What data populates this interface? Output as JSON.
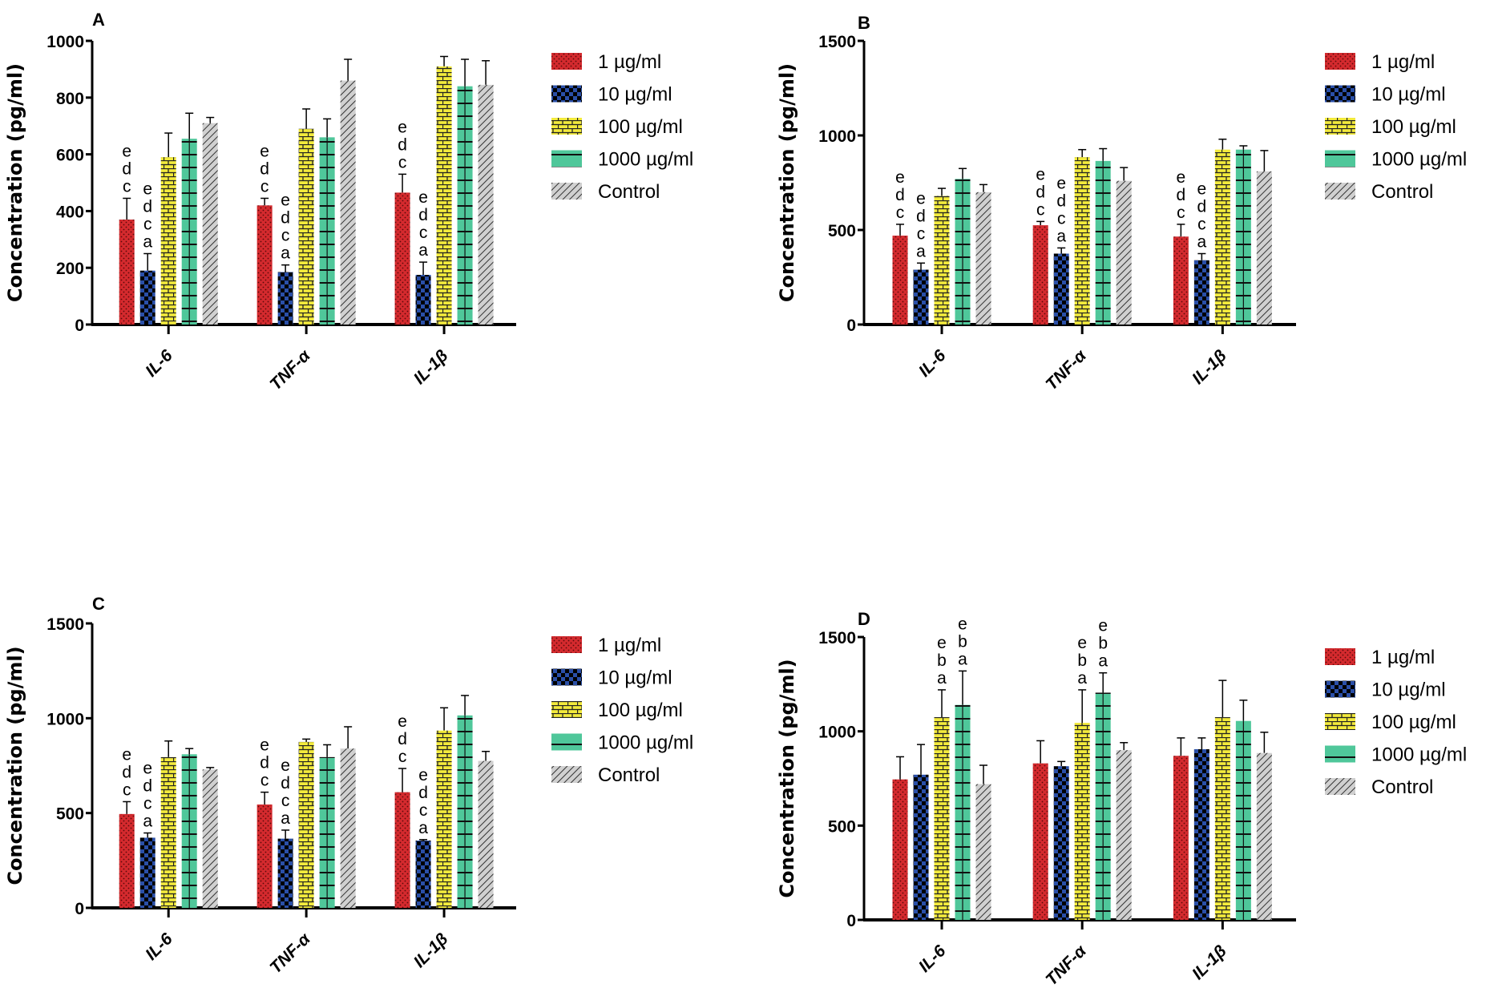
{
  "chart_data": [
    {
      "type": "bar",
      "panel_label": "A",
      "ylabel": "Concentration (pg/ml)",
      "ylim": [
        0,
        1000
      ],
      "yticks": [
        0,
        200,
        400,
        600,
        800,
        1000
      ],
      "categories": [
        "IL-6",
        "TNF-α",
        "IL-1β"
      ],
      "legend_position": "right",
      "series": [
        {
          "name": "1 µg/ml",
          "values": [
            370,
            420,
            465
          ],
          "errors": [
            75,
            25,
            65
          ],
          "letters": [
            [
              "e",
              "d",
              "c"
            ],
            [
              "e",
              "d",
              "c"
            ],
            [
              "e",
              "d",
              "c"
            ]
          ]
        },
        {
          "name": "10 µg/ml",
          "values": [
            190,
            185,
            175
          ],
          "errors": [
            60,
            25,
            45
          ],
          "letters": [
            [
              "e",
              "d",
              "c",
              "a"
            ],
            [
              "e",
              "d",
              "c",
              "a"
            ],
            [
              "e",
              "d",
              "c",
              "a"
            ]
          ]
        },
        {
          "name": "100 µg/ml",
          "values": [
            590,
            690,
            910
          ],
          "errors": [
            85,
            70,
            35
          ],
          "letters": [
            [],
            [],
            []
          ]
        },
        {
          "name": "1000 µg/ml",
          "values": [
            655,
            660,
            840
          ],
          "errors": [
            90,
            65,
            95
          ],
          "letters": [
            [],
            [],
            []
          ]
        },
        {
          "name": "Control",
          "values": [
            710,
            860,
            845
          ],
          "errors": [
            20,
            75,
            85
          ],
          "letters": [
            [],
            [],
            []
          ]
        }
      ]
    },
    {
      "type": "bar",
      "panel_label": "B",
      "ylabel": "Concentration (pg/ml)",
      "ylim": [
        0,
        1500
      ],
      "yticks": [
        0,
        500,
        1000,
        1500
      ],
      "categories": [
        "IL-6",
        "TNF-α",
        "IL-1β"
      ],
      "legend_position": "right",
      "series": [
        {
          "name": "1 µg/ml",
          "values": [
            470,
            525,
            465
          ],
          "errors": [
            60,
            20,
            65
          ],
          "letters": [
            [
              "e",
              "d",
              "c"
            ],
            [
              "e",
              "d",
              "c"
            ],
            [
              "e",
              "d",
              "c"
            ]
          ]
        },
        {
          "name": "10 µg/ml",
          "values": [
            290,
            375,
            340
          ],
          "errors": [
            35,
            30,
            35
          ],
          "letters": [
            [
              "e",
              "d",
              "c",
              "a"
            ],
            [
              "e",
              "d",
              "c",
              "a"
            ],
            [
              "e",
              "d",
              "c",
              "a"
            ]
          ]
        },
        {
          "name": "100 µg/ml",
          "values": [
            680,
            885,
            925
          ],
          "errors": [
            40,
            40,
            55
          ],
          "letters": [
            [],
            [],
            []
          ]
        },
        {
          "name": "1000 µg/ml",
          "values": [
            770,
            865,
            925
          ],
          "errors": [
            55,
            65,
            20
          ],
          "letters": [
            [],
            [],
            []
          ]
        },
        {
          "name": "Control",
          "values": [
            700,
            760,
            810
          ],
          "errors": [
            40,
            70,
            110
          ],
          "letters": [
            [],
            [],
            []
          ]
        }
      ]
    },
    {
      "type": "bar",
      "panel_label": "C",
      "ylabel": "Concentration (pg/ml)",
      "ylim": [
        0,
        1500
      ],
      "yticks": [
        0,
        500,
        1000,
        1500
      ],
      "categories": [
        "IL-6",
        "TNF-α",
        "IL-1β"
      ],
      "legend_position": "right",
      "series": [
        {
          "name": "1 µg/ml",
          "values": [
            495,
            545,
            610
          ],
          "errors": [
            65,
            65,
            125
          ],
          "letters": [
            [
              "e",
              "d",
              "c"
            ],
            [
              "e",
              "d",
              "c"
            ],
            [
              "e",
              "d",
              "c"
            ]
          ]
        },
        {
          "name": "10 µg/ml",
          "values": [
            370,
            365,
            355
          ],
          "errors": [
            25,
            45,
            5
          ],
          "letters": [
            [
              "e",
              "d",
              "c",
              "a"
            ],
            [
              "e",
              "d",
              "c",
              "a"
            ],
            [
              "e",
              "d",
              "c",
              "a"
            ]
          ]
        },
        {
          "name": "100 µg/ml",
          "values": [
            795,
            875,
            935
          ],
          "errors": [
            85,
            15,
            120
          ],
          "letters": [
            [],
            [],
            []
          ]
        },
        {
          "name": "1000 µg/ml",
          "values": [
            810,
            795,
            1015
          ],
          "errors": [
            30,
            65,
            105
          ],
          "letters": [
            [],
            [],
            []
          ]
        },
        {
          "name": "Control",
          "values": [
            730,
            840,
            775
          ],
          "errors": [
            10,
            115,
            50
          ],
          "letters": [
            [],
            [],
            []
          ]
        }
      ]
    },
    {
      "type": "bar",
      "panel_label": "D",
      "ylabel": "Concentration (pg/ml)",
      "ylim": [
        0,
        1500
      ],
      "yticks": [
        0,
        500,
        1000,
        1500
      ],
      "categories": [
        "IL-6",
        "TNF-α",
        "IL-1β"
      ],
      "legend_position": "right",
      "series": [
        {
          "name": "1 µg/ml",
          "values": [
            745,
            830,
            870
          ],
          "errors": [
            120,
            120,
            95
          ],
          "letters": [
            [],
            [],
            []
          ]
        },
        {
          "name": "10 µg/ml",
          "values": [
            770,
            815,
            905
          ],
          "errors": [
            160,
            25,
            60
          ],
          "letters": [
            [],
            [],
            []
          ]
        },
        {
          "name": "100 µg/ml",
          "values": [
            1075,
            1045,
            1075
          ],
          "errors": [
            145,
            175,
            195
          ],
          "letters": [
            [
              "e",
              "b",
              "a"
            ],
            [
              "e",
              "b",
              "a"
            ],
            []
          ]
        },
        {
          "name": "1000 µg/ml",
          "values": [
            1140,
            1205,
            1055
          ],
          "errors": [
            180,
            105,
            110
          ],
          "letters": [
            [
              "e",
              "b",
              "a"
            ],
            [
              "e",
              "b",
              "a"
            ],
            []
          ]
        },
        {
          "name": "Control",
          "values": [
            720,
            900,
            885
          ],
          "errors": [
            100,
            40,
            110
          ],
          "letters": [
            [],
            [],
            []
          ]
        }
      ]
    }
  ],
  "series_colors": [
    "#d42a2e",
    "#2a4fa8",
    "#f2ea3c",
    "#4fc79a",
    "#c8c8c8"
  ],
  "series_patterns": [
    "dots",
    "checker",
    "brick",
    "grid-lines",
    "diagonal-hatch"
  ]
}
